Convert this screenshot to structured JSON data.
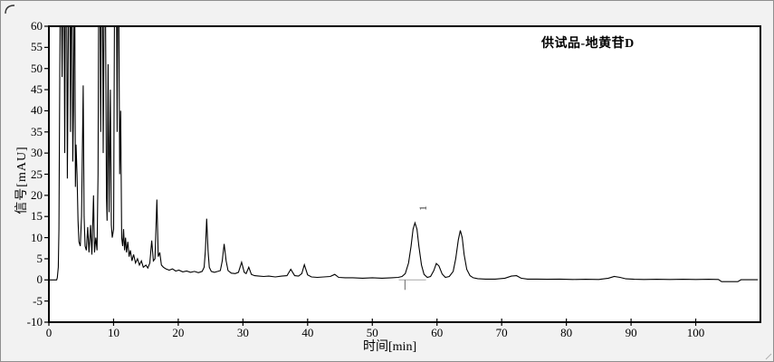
{
  "window": {
    "background_color": "#f2f2f2",
    "frame_color": "#8f8f8f",
    "plot_background": "#ffffff",
    "plot_border_color": "#000000"
  },
  "chart_data": {
    "type": "line",
    "title": "供试品-地黄苷D",
    "xlabel": "时间[min]",
    "ylabel": "信号[mAU]",
    "xlim": [
      0,
      110
    ],
    "ylim": [
      -10,
      60
    ],
    "x_ticks": [
      0,
      10,
      20,
      30,
      40,
      50,
      60,
      70,
      80,
      90,
      100
    ],
    "y_ticks": [
      -10,
      -5,
      0,
      5,
      10,
      15,
      20,
      25,
      30,
      35,
      40,
      45,
      50,
      55,
      60
    ],
    "grid": false,
    "legend_position": "top-right",
    "line_color": "#000000",
    "clip_level": 60,
    "peak_labels": [
      {
        "label": "1",
        "t": 56.6,
        "v": 13.5
      }
    ],
    "integration_markers": [
      {
        "t_start": 54.1,
        "t_end": 58.3,
        "v": 0,
        "tick_t": 55.05,
        "line_color": "#a8a8a8",
        "tick_color": "#666666"
      }
    ],
    "series": [
      {
        "name": "供试品-地黄苷D",
        "points": [
          [
            0.0,
            0
          ],
          [
            1.2,
            0
          ],
          [
            1.3,
            0.5
          ],
          [
            1.45,
            3
          ],
          [
            1.55,
            12
          ],
          [
            1.65,
            40
          ],
          [
            1.75,
            66
          ],
          [
            1.95,
            66
          ],
          [
            2.05,
            48
          ],
          [
            2.15,
            66
          ],
          [
            2.35,
            66
          ],
          [
            2.45,
            30
          ],
          [
            2.55,
            66
          ],
          [
            2.75,
            66
          ],
          [
            2.85,
            24
          ],
          [
            2.95,
            45
          ],
          [
            3.05,
            66
          ],
          [
            3.25,
            66
          ],
          [
            3.35,
            35
          ],
          [
            3.45,
            66
          ],
          [
            3.6,
            66
          ],
          [
            3.7,
            28
          ],
          [
            3.8,
            40
          ],
          [
            3.9,
            66
          ],
          [
            4.0,
            66
          ],
          [
            4.1,
            22
          ],
          [
            4.2,
            32
          ],
          [
            4.35,
            25
          ],
          [
            4.5,
            14
          ],
          [
            4.65,
            9
          ],
          [
            4.85,
            8
          ],
          [
            5.05,
            15
          ],
          [
            5.3,
            46
          ],
          [
            5.45,
            15
          ],
          [
            5.6,
            8
          ],
          [
            5.8,
            7
          ],
          [
            6.0,
            12.5
          ],
          [
            6.2,
            6.5
          ],
          [
            6.45,
            13
          ],
          [
            6.65,
            6
          ],
          [
            6.9,
            20
          ],
          [
            7.05,
            6.5
          ],
          [
            7.25,
            10
          ],
          [
            7.45,
            7
          ],
          [
            7.6,
            25
          ],
          [
            7.7,
            66
          ],
          [
            7.9,
            66
          ],
          [
            8.0,
            35
          ],
          [
            8.1,
            66
          ],
          [
            8.3,
            66
          ],
          [
            8.4,
            30
          ],
          [
            8.55,
            66
          ],
          [
            8.75,
            66
          ],
          [
            8.9,
            20
          ],
          [
            9.0,
            14
          ],
          [
            9.15,
            51
          ],
          [
            9.3,
            16
          ],
          [
            9.5,
            45
          ],
          [
            9.65,
            13
          ],
          [
            9.8,
            10
          ],
          [
            10.0,
            12
          ],
          [
            10.15,
            66
          ],
          [
            10.45,
            66
          ],
          [
            10.55,
            35
          ],
          [
            10.65,
            66
          ],
          [
            10.8,
            66
          ],
          [
            10.95,
            25
          ],
          [
            11.1,
            40
          ],
          [
            11.25,
            10
          ],
          [
            11.4,
            8
          ],
          [
            11.55,
            12
          ],
          [
            11.7,
            7
          ],
          [
            11.85,
            10
          ],
          [
            12.0,
            6.5
          ],
          [
            12.2,
            9
          ],
          [
            12.4,
            5.5
          ],
          [
            12.6,
            7
          ],
          [
            12.85,
            4.5
          ],
          [
            13.1,
            6
          ],
          [
            13.4,
            4
          ],
          [
            13.7,
            5
          ],
          [
            14.0,
            3.5
          ],
          [
            14.3,
            4.5
          ],
          [
            14.6,
            3
          ],
          [
            15.0,
            3.5
          ],
          [
            15.3,
            2.8
          ],
          [
            15.6,
            4
          ],
          [
            15.9,
            9.3
          ],
          [
            16.15,
            4.5
          ],
          [
            16.4,
            5
          ],
          [
            16.7,
            19
          ],
          [
            16.9,
            5.5
          ],
          [
            17.15,
            6.5
          ],
          [
            17.4,
            3.5
          ],
          [
            17.7,
            3
          ],
          [
            18.1,
            2.6
          ],
          [
            18.6,
            2.3
          ],
          [
            19.1,
            2.6
          ],
          [
            19.6,
            2.1
          ],
          [
            20.1,
            2.3
          ],
          [
            20.7,
            1.9
          ],
          [
            21.3,
            2.1
          ],
          [
            21.9,
            1.8
          ],
          [
            22.5,
            2.0
          ],
          [
            23.1,
            1.7
          ],
          [
            23.7,
            2.0
          ],
          [
            24.0,
            3
          ],
          [
            24.2,
            7
          ],
          [
            24.4,
            14.5
          ],
          [
            24.6,
            7
          ],
          [
            24.8,
            3
          ],
          [
            25.1,
            2.0
          ],
          [
            25.6,
            1.8
          ],
          [
            26.1,
            2.0
          ],
          [
            26.5,
            2.2
          ],
          [
            26.8,
            4.5
          ],
          [
            27.1,
            8.5
          ],
          [
            27.4,
            4.5
          ],
          [
            27.7,
            2.2
          ],
          [
            28.2,
            1.6
          ],
          [
            28.8,
            1.5
          ],
          [
            29.3,
            1.8
          ],
          [
            29.8,
            4.2
          ],
          [
            30.2,
            1.8
          ],
          [
            30.5,
            1.5
          ],
          [
            30.9,
            3.0
          ],
          [
            31.3,
            1.3
          ],
          [
            31.8,
            1.0
          ],
          [
            32.5,
            0.9
          ],
          [
            33.2,
            0.8
          ],
          [
            34.0,
            0.9
          ],
          [
            35.0,
            0.7
          ],
          [
            36.0,
            0.9
          ],
          [
            36.8,
            1.0
          ],
          [
            37.4,
            2.5
          ],
          [
            38.0,
            1.0
          ],
          [
            38.6,
            0.9
          ],
          [
            39.1,
            1.5
          ],
          [
            39.5,
            3.6
          ],
          [
            40.0,
            1.2
          ],
          [
            40.6,
            0.7
          ],
          [
            41.5,
            0.6
          ],
          [
            42.5,
            0.7
          ],
          [
            43.5,
            0.8
          ],
          [
            44.2,
            1.3
          ],
          [
            44.8,
            0.6
          ],
          [
            45.8,
            0.5
          ],
          [
            47.0,
            0.5
          ],
          [
            48.5,
            0.4
          ],
          [
            50.0,
            0.5
          ],
          [
            51.5,
            0.4
          ],
          [
            53.0,
            0.5
          ],
          [
            54.0,
            0.6
          ],
          [
            54.6,
            0.8
          ],
          [
            55.1,
            1.5
          ],
          [
            55.6,
            4
          ],
          [
            56.0,
            8
          ],
          [
            56.3,
            12
          ],
          [
            56.6,
            13.5
          ],
          [
            56.9,
            12
          ],
          [
            57.2,
            8
          ],
          [
            57.6,
            3.5
          ],
          [
            58.0,
            1.3
          ],
          [
            58.5,
            0.6
          ],
          [
            59.0,
            0.8
          ],
          [
            59.5,
            2.2
          ],
          [
            59.9,
            3.9
          ],
          [
            60.3,
            3.3
          ],
          [
            60.8,
            1.4
          ],
          [
            61.3,
            0.6
          ],
          [
            61.9,
            0.8
          ],
          [
            62.5,
            2
          ],
          [
            62.9,
            5
          ],
          [
            63.3,
            9.5
          ],
          [
            63.6,
            11.7
          ],
          [
            63.9,
            10
          ],
          [
            64.2,
            6
          ],
          [
            64.6,
            2.5
          ],
          [
            65.1,
            1.0
          ],
          [
            65.6,
            0.5
          ],
          [
            66.3,
            0.3
          ],
          [
            67.5,
            0.2
          ],
          [
            69.0,
            0.2
          ],
          [
            70.5,
            0.4
          ],
          [
            71.5,
            0.9
          ],
          [
            72.3,
            1.0
          ],
          [
            73.0,
            0.4
          ],
          [
            74.0,
            0.2
          ],
          [
            75.5,
            0.2
          ],
          [
            77.0,
            0.15
          ],
          [
            79.0,
            0.2
          ],
          [
            81.0,
            0.1
          ],
          [
            83.0,
            0.15
          ],
          [
            85.0,
            0.1
          ],
          [
            86.5,
            0.4
          ],
          [
            87.4,
            0.8
          ],
          [
            88.3,
            0.6
          ],
          [
            89.2,
            0.25
          ],
          [
            90.5,
            0.15
          ],
          [
            92.0,
            0.1
          ],
          [
            94.0,
            0.15
          ],
          [
            96.0,
            0.1
          ],
          [
            98.0,
            0.15
          ],
          [
            100.0,
            0.1
          ],
          [
            102.0,
            0.15
          ],
          [
            103.5,
            0.1
          ],
          [
            104.0,
            -0.4
          ],
          [
            106.5,
            -0.4
          ],
          [
            107.0,
            0.05
          ],
          [
            108.5,
            0.05
          ],
          [
            109.6,
            0.05
          ]
        ]
      }
    ]
  }
}
